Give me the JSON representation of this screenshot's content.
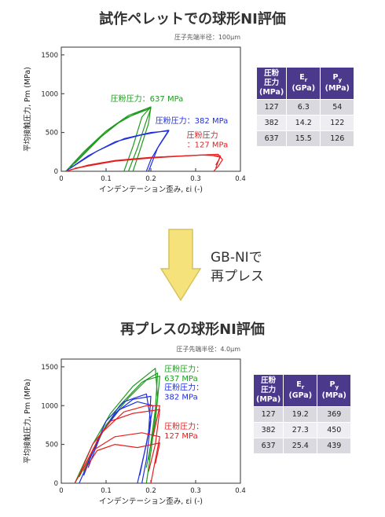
{
  "top": {
    "title": "試作ペレットでの球形NI評価",
    "note": "圧子先端半径：100μm",
    "table": {
      "headers": [
        "圧粉圧力(MPa)",
        "Er(GPa)",
        "Py(MPa)"
      ],
      "header_lines": [
        [
          "圧粉",
          "圧力",
          "(MPa)"
        ],
        [
          "E",
          "(GPa)"
        ],
        [
          "P",
          "(MPa)"
        ]
      ],
      "header_subs": [
        "",
        "r",
        "y"
      ],
      "rows": [
        [
          "127",
          "6.3",
          "54"
        ],
        [
          "382",
          "14.2",
          "122"
        ],
        [
          "637",
          "15.5",
          "126"
        ]
      ]
    }
  },
  "middle": {
    "line1": "GB-NIで",
    "line2": "再プレス"
  },
  "bottom": {
    "title": "再プレスの球形NI評価",
    "note": "圧子先端半径：4.0μm",
    "table": {
      "headers": [
        "圧粉圧力(MPa)",
        "Er(GPa)",
        "Py(MPa)"
      ],
      "header_lines": [
        [
          "圧粉",
          "圧力",
          "(MPa)"
        ],
        [
          "E",
          "(GPa)"
        ],
        [
          "P",
          "(MPa)"
        ]
      ],
      "header_subs": [
        "",
        "r",
        "y"
      ],
      "rows": [
        [
          "127",
          "19.2",
          "369"
        ],
        [
          "382",
          "27.3",
          "450"
        ],
        [
          "637",
          "25.4",
          "439"
        ]
      ]
    }
  },
  "colors": {
    "green": "#1f9a1f",
    "blue": "#1f2fe0",
    "red": "#e61e1e",
    "purple": "#4b3a8c",
    "arrow": "#f5e27a"
  },
  "chart_data": [
    {
      "type": "line",
      "xlabel": "インデンテーション歪み, εi  (-)",
      "ylabel": "平均接触圧力, Pm (MPa)",
      "xlim": [
        0,
        0.4
      ],
      "ylim": [
        0,
        1600
      ],
      "xticks": [
        "0",
        "0.1",
        "0.2",
        "0.3",
        "0.4"
      ],
      "yticks": [
        "0",
        "500",
        "1000",
        "1500"
      ],
      "series": [
        {
          "name": "圧粉圧力：637 MPa",
          "label_lines": [
            "圧粉圧力：637 MPa"
          ],
          "color": "green",
          "label_x": 0.11,
          "label_y": 900,
          "loops": [
            [
              [
                0.01,
                0
              ],
              [
                0.05,
                250
              ],
              [
                0.1,
                520
              ],
              [
                0.15,
                720
              ],
              [
                0.2,
                830
              ],
              [
                0.18,
                700
              ],
              [
                0.16,
                320
              ],
              [
                0.14,
                0
              ]
            ],
            [
              [
                0.02,
                50
              ],
              [
                0.07,
                350
              ],
              [
                0.12,
                600
              ],
              [
                0.17,
                760
              ],
              [
                0.2,
                810
              ],
              [
                0.19,
                650
              ],
              [
                0.17,
                300
              ],
              [
                0.15,
                0
              ]
            ],
            [
              [
                0.03,
                100
              ],
              [
                0.09,
                450
              ],
              [
                0.14,
                680
              ],
              [
                0.19,
                790
              ],
              [
                0.2,
                830
              ],
              [
                0.195,
                620
              ],
              [
                0.175,
                260
              ],
              [
                0.16,
                0
              ]
            ]
          ]
        },
        {
          "name": "圧粉圧力：382 MPa",
          "label_lines": [
            "圧粉圧力：382 MPa"
          ],
          "color": "blue",
          "label_x": 0.21,
          "label_y": 620,
          "loops": [
            [
              [
                0.01,
                0
              ],
              [
                0.06,
                200
              ],
              [
                0.12,
                380
              ],
              [
                0.18,
                470
              ],
              [
                0.24,
                530
              ],
              [
                0.22,
                350
              ],
              [
                0.2,
                150
              ],
              [
                0.19,
                0
              ]
            ],
            [
              [
                0.02,
                40
              ],
              [
                0.08,
                260
              ],
              [
                0.14,
                420
              ],
              [
                0.2,
                500
              ],
              [
                0.24,
                520
              ],
              [
                0.215,
                300
              ],
              [
                0.195,
                0
              ]
            ]
          ]
        },
        {
          "name": "圧粉圧力：127 MPa",
          "label_lines": [
            "圧粉圧力",
            "：127 MPa"
          ],
          "color": "red",
          "label_x": 0.28,
          "label_y": 430,
          "loops": [
            [
              [
                0.01,
                0
              ],
              [
                0.06,
                80
              ],
              [
                0.12,
                140
              ],
              [
                0.2,
                180
              ],
              [
                0.28,
                200
              ],
              [
                0.35,
                220
              ],
              [
                0.36,
                150
              ],
              [
                0.35,
                60
              ],
              [
                0.34,
                0
              ]
            ],
            [
              [
                0.02,
                20
              ],
              [
                0.09,
                110
              ],
              [
                0.16,
                160
              ],
              [
                0.24,
                190
              ],
              [
                0.31,
                210
              ],
              [
                0.355,
                200
              ],
              [
                0.35,
                120
              ],
              [
                0.345,
                40
              ]
            ],
            [
              [
                0.03,
                40
              ],
              [
                0.12,
                130
              ],
              [
                0.2,
                170
              ],
              [
                0.27,
                195
              ],
              [
                0.33,
                215
              ],
              [
                0.355,
                180
              ],
              [
                0.345,
                80
              ]
            ]
          ]
        }
      ]
    },
    {
      "type": "line",
      "xlabel": "インデンテーション歪み, εi  (-)",
      "ylabel": "平均接触圧力, Pm (MPa)",
      "xlim": [
        0,
        0.4
      ],
      "ylim": [
        0,
        1600
      ],
      "xticks": [
        "0",
        "0.1",
        "0.2",
        "0.3",
        "0.4"
      ],
      "yticks": [
        "0",
        "500",
        "1000",
        "1500"
      ],
      "series": [
        {
          "name": "圧粉圧力：637 MPa",
          "label_lines": [
            "圧粉圧力：",
            "637 MPa"
          ],
          "color": "green",
          "label_x": 0.23,
          "label_y": 1440,
          "loops": [
            [
              [
                0.03,
                0
              ],
              [
                0.07,
                500
              ],
              [
                0.11,
                900
              ],
              [
                0.16,
                1250
              ],
              [
                0.21,
                1480
              ],
              [
                0.215,
                1100
              ],
              [
                0.2,
                400
              ],
              [
                0.19,
                0
              ]
            ],
            [
              [
                0.04,
                80
              ],
              [
                0.09,
                650
              ],
              [
                0.13,
                1000
              ],
              [
                0.18,
                1300
              ],
              [
                0.215,
                1420
              ],
              [
                0.21,
                950
              ],
              [
                0.195,
                300
              ]
            ],
            [
              [
                0.05,
                160
              ],
              [
                0.1,
                750
              ],
              [
                0.15,
                1100
              ],
              [
                0.19,
                1330
              ],
              [
                0.22,
                1380
              ],
              [
                0.21,
                800
              ],
              [
                0.19,
                200
              ]
            ]
          ]
        },
        {
          "name": "圧粉圧力：382 MPa",
          "label_lines": [
            "圧粉圧力：",
            "382 MPa"
          ],
          "color": "blue",
          "label_x": 0.23,
          "label_y": 1200,
          "loops": [
            [
              [
                0.04,
                0
              ],
              [
                0.07,
                400
              ],
              [
                0.1,
                800
              ],
              [
                0.14,
                1050
              ],
              [
                0.19,
                1150
              ],
              [
                0.2,
                800
              ],
              [
                0.19,
                300
              ],
              [
                0.18,
                0
              ]
            ],
            [
              [
                0.05,
                100
              ],
              [
                0.08,
                550
              ],
              [
                0.12,
                900
              ],
              [
                0.16,
                1080
              ],
              [
                0.2,
                1120
              ],
              [
                0.195,
                650
              ],
              [
                0.175,
                100
              ]
            ],
            [
              [
                0.06,
                200
              ],
              [
                0.09,
                650
              ],
              [
                0.13,
                950
              ],
              [
                0.17,
                1050
              ],
              [
                0.205,
                1000
              ],
              [
                0.19,
                500
              ],
              [
                0.17,
                0
              ]
            ]
          ]
        },
        {
          "name": "圧粉圧力：127 MPa",
          "label_lines": [
            "圧粉圧力：",
            "127 MPa"
          ],
          "color": "red",
          "label_x": 0.23,
          "label_y": 700,
          "loops": [
            [
              [
                0.03,
                0
              ],
              [
                0.05,
                200
              ],
              [
                0.07,
                420
              ],
              [
                0.12,
                600
              ],
              [
                0.18,
                650
              ],
              [
                0.22,
                600
              ],
              [
                0.21,
                300
              ],
              [
                0.2,
                0
              ]
            ],
            [
              [
                0.04,
                100
              ],
              [
                0.07,
                500
              ],
              [
                0.11,
                800
              ],
              [
                0.16,
                900
              ],
              [
                0.22,
                950
              ],
              [
                0.21,
                500
              ],
              [
                0.195,
                150
              ]
            ],
            [
              [
                0.05,
                200
              ],
              [
                0.09,
                650
              ],
              [
                0.14,
                920
              ],
              [
                0.19,
                1000
              ],
              [
                0.22,
                1000
              ],
              [
                0.205,
                600
              ]
            ],
            [
              [
                0.05,
                150
              ],
              [
                0.08,
                420
              ],
              [
                0.12,
                500
              ],
              [
                0.17,
                460
              ],
              [
                0.22,
                520
              ],
              [
                0.21,
                250
              ]
            ]
          ]
        }
      ]
    }
  ]
}
